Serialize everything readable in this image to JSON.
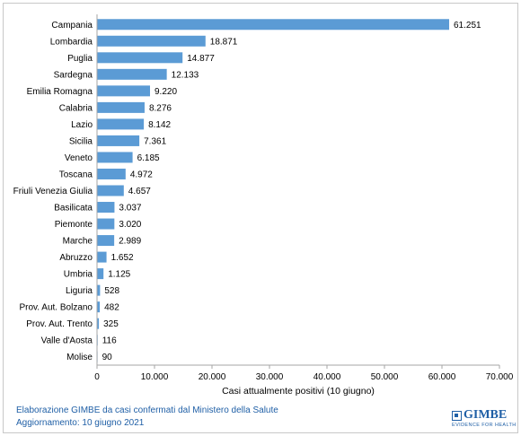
{
  "chart_data": {
    "type": "bar",
    "orientation": "horizontal",
    "categories": [
      "Campania",
      "Lombardia",
      "Puglia",
      "Sardegna",
      "Emilia Romagna",
      "Calabria",
      "Lazio",
      "Sicilia",
      "Veneto",
      "Toscana",
      "Friuli Venezia Giulia",
      "Basilicata",
      "Piemonte",
      "Marche",
      "Abruzzo",
      "Umbria",
      "Liguria",
      "Prov. Aut. Bolzano",
      "Prov. Aut. Trento",
      "Valle d'Aosta",
      "Molise"
    ],
    "values": [
      61251,
      18871,
      14877,
      12133,
      9220,
      8276,
      8142,
      7361,
      6185,
      4972,
      4657,
      3037,
      3020,
      2989,
      1652,
      1125,
      528,
      482,
      325,
      116,
      90
    ],
    "value_labels": [
      "61.251",
      "18.871",
      "14.877",
      "12.133",
      "9.220",
      "8.276",
      "8.142",
      "7.361",
      "6.185",
      "4.972",
      "4.657",
      "3.037",
      "3.020",
      "2.989",
      "1.652",
      "1.125",
      "528",
      "482",
      "325",
      "116",
      "90"
    ],
    "xlim": [
      0,
      70000
    ],
    "x_ticks": [
      0,
      10000,
      20000,
      30000,
      40000,
      50000,
      60000,
      70000
    ],
    "x_tick_labels": [
      "0",
      "10.000",
      "20.000",
      "30.000",
      "40.000",
      "50.000",
      "60.000",
      "70.000"
    ],
    "xlabel": "Casi attualmente positivi (10 giugno)",
    "ylabel": "",
    "title": "",
    "grid": false,
    "legend": "none",
    "bar_color": "#5b9bd5"
  },
  "footer": {
    "line1": "Elaborazione GIMBE da casi confermati dal Ministero della Salute",
    "line2": "Aggiornamento: 10 giugno 2021"
  },
  "logo": {
    "name": "GIMBE",
    "tagline": "EVIDENCE FOR HEALTH",
    "icon": "gimbe-logo-mark"
  }
}
